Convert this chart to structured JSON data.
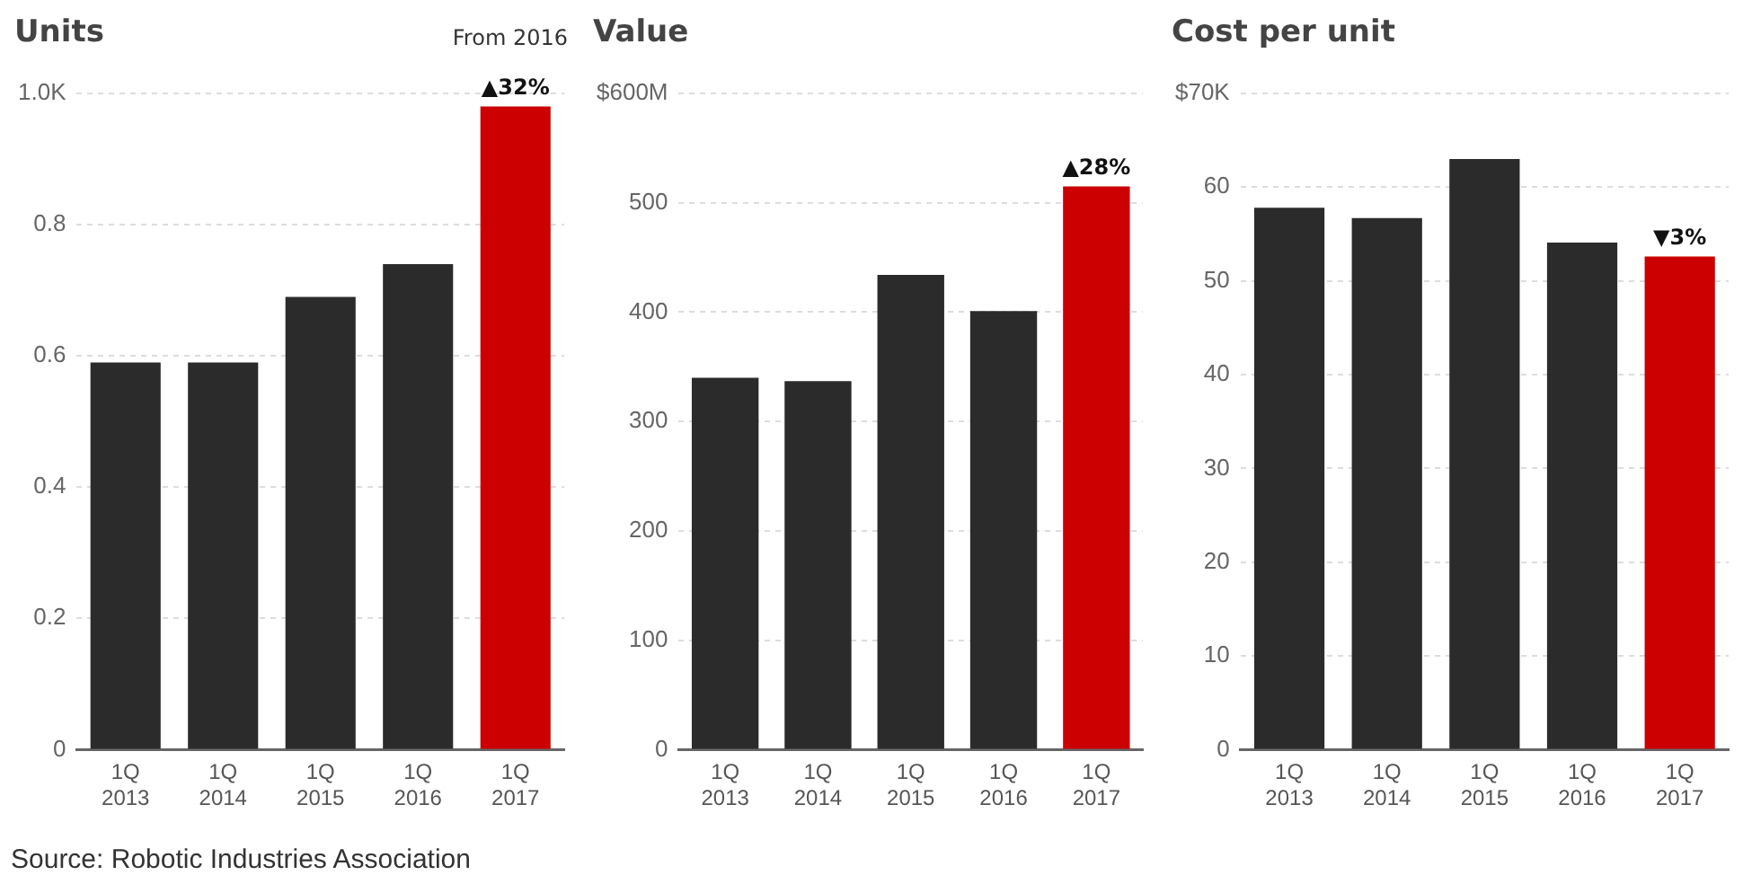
{
  "chart_data": [
    {
      "type": "bar",
      "title": "Units",
      "categories": [
        "1Q 2013",
        "1Q 2014",
        "1Q 2015",
        "1Q 2016",
        "1Q 2017"
      ],
      "values": [
        0.59,
        0.59,
        0.69,
        0.74,
        0.98
      ],
      "colors": [
        "#2b2b2b",
        "#2b2b2b",
        "#2b2b2b",
        "#2b2b2b",
        "#cc0000"
      ],
      "ylim": [
        0,
        1
      ],
      "yticks": [
        0,
        0.2,
        0.4,
        0.6,
        0.8,
        {
          "value": 1,
          "label": "1.0K"
        }
      ],
      "grid": "y",
      "annotations": [
        "From 2016",
        "Source: Robotic Industries Association",
        {
          "text": "▲32%",
          "x": "1Q 2017",
          "y": 0.98
        }
      ]
    },
    {
      "type": "bar",
      "title": "Value",
      "categories": [
        "1Q 2013",
        "1Q 2014",
        "1Q 2015",
        "1Q 2016",
        "1Q 2017"
      ],
      "values": [
        340,
        337,
        434,
        401,
        515
      ],
      "colors": [
        "#2b2b2b",
        "#2b2b2b",
        "#2b2b2b",
        "#2b2b2b",
        "#cc0000"
      ],
      "ylim": [
        0,
        600
      ],
      "yticks": [
        0,
        100,
        200,
        300,
        400,
        500,
        {
          "value": 600,
          "label": "$600M"
        }
      ],
      "grid": "y",
      "annotations": [
        {
          "text": "▲28%",
          "x": "1Q 2017",
          "y": 515
        }
      ]
    },
    {
      "type": "bar",
      "title": "Cost per unit",
      "categories": [
        "1Q 2013",
        "1Q 2014",
        "1Q 2015",
        "1Q 2016",
        "1Q 2017"
      ],
      "values": [
        57.8,
        56.7,
        63,
        54.1,
        52.6
      ],
      "colors": [
        "#2b2b2b",
        "#2b2b2b",
        "#2b2b2b",
        "#2b2b2b",
        "#cc0000"
      ],
      "ylim": [
        0,
        70
      ],
      "yticks": [
        0,
        10,
        20,
        30,
        40,
        50,
        60,
        {
          "value": 70,
          "label": "$70K"
        }
      ],
      "grid": "y",
      "annotations": [
        {
          "text": "▼3%",
          "x": "1Q 2017",
          "y": 52.6
        }
      ]
    }
  ]
}
